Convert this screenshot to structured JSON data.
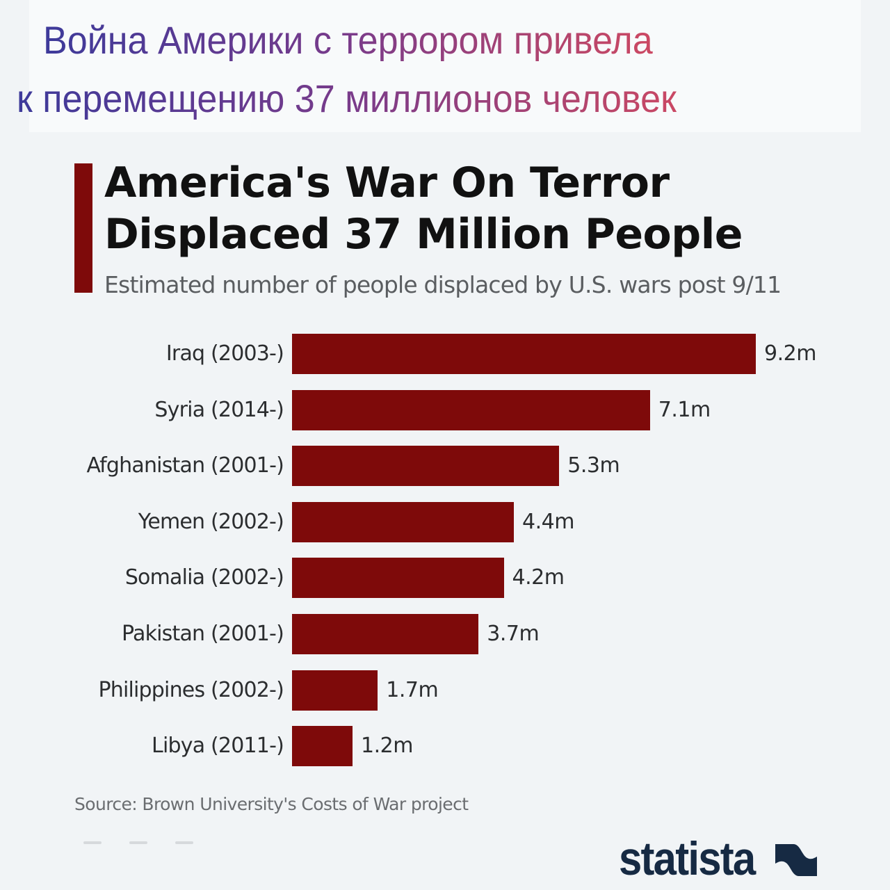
{
  "header_ru": {
    "line1": "Война Америки с террором привела",
    "line2": "к перемещению 37 миллионов человек"
  },
  "title": {
    "line1": "America's War On Terror",
    "line2": "Displaced 37 Million People"
  },
  "subtitle": "Estimated number of people displaced by U.S. wars post 9/11",
  "source": "Source: Brown University's Costs of War project",
  "logo": {
    "text": "statista",
    "icon": "statista-logo-icon"
  },
  "colors": {
    "bar": "#7e0a0a",
    "accent": "#7e0a0a",
    "logo": "#162a43",
    "gradient_start": "#3d3a9a",
    "gradient_end": "#e04a5a"
  },
  "rows": [
    {
      "label": "Iraq (2003-)",
      "value": 9.2,
      "value_label": "9.2m"
    },
    {
      "label": "Syria (2014-)",
      "value": 7.1,
      "value_label": "7.1m"
    },
    {
      "label": "Afghanistan (2001-)",
      "value": 5.3,
      "value_label": "5.3m"
    },
    {
      "label": "Yemen (2002-)",
      "value": 4.4,
      "value_label": "4.4m"
    },
    {
      "label": "Somalia (2002-)",
      "value": 4.2,
      "value_label": "4.2m"
    },
    {
      "label": "Pakistan (2001-)",
      "value": 3.7,
      "value_label": "3.7m"
    },
    {
      "label": "Philippines (2002-)",
      "value": 1.7,
      "value_label": "1.7m"
    },
    {
      "label": "Libya (2011-)",
      "value": 1.2,
      "value_label": "1.2m"
    }
  ],
  "chart_data": {
    "type": "bar",
    "orientation": "horizontal",
    "title": "America's War On Terror Displaced 37 Million People",
    "subtitle": "Estimated number of people displaced by U.S. wars post 9/11",
    "categories": [
      "Iraq (2003-)",
      "Syria (2014-)",
      "Afghanistan (2001-)",
      "Yemen (2002-)",
      "Somalia (2002-)",
      "Pakistan (2001-)",
      "Philippines (2002-)",
      "Libya (2011-)"
    ],
    "values": [
      9.2,
      7.1,
      5.3,
      4.4,
      4.2,
      3.7,
      1.7,
      1.2
    ],
    "value_labels": [
      "9.2m",
      "7.1m",
      "5.3m",
      "4.4m",
      "4.2m",
      "3.7m",
      "1.7m",
      "1.2m"
    ],
    "units": "million people",
    "xlabel": "",
    "ylabel": "",
    "grid": false,
    "legend": null,
    "source": "Source: Brown University's Costs of War project"
  }
}
